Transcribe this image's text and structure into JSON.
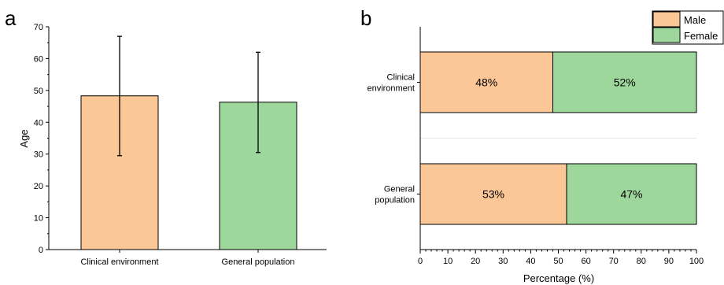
{
  "colors": {
    "male": "#FBC797",
    "female": "#9DD79B",
    "axis": "#000000"
  },
  "chart_data": [
    {
      "panel_label": "a",
      "type": "bar",
      "categories": [
        "Clinical environment",
        "General population"
      ],
      "values": [
        48.3,
        46.3
      ],
      "error_low": [
        29.5,
        30.5
      ],
      "error_high": [
        67,
        62
      ],
      "ylabel": "Age",
      "xlabel": "",
      "ylim": [
        0,
        70
      ],
      "yticks": [
        "0",
        "10",
        "20",
        "30",
        "40",
        "50",
        "60",
        "70"
      ],
      "grid": false
    },
    {
      "panel_label": "b",
      "type": "bar",
      "orientation": "horizontal-stacked",
      "categories": [
        {
          "line1": "Clinical",
          "line2": "environment"
        },
        {
          "line1": "General",
          "line2": "population"
        }
      ],
      "series": [
        {
          "name": "Male",
          "values": [
            48,
            53
          ],
          "labels": [
            "48%",
            "53%"
          ]
        },
        {
          "name": "Female",
          "values": [
            52,
            47
          ],
          "labels": [
            "52%",
            "47%"
          ]
        }
      ],
      "xlabel": "Percentage (%)",
      "xlim": [
        0,
        100
      ],
      "xticks": [
        "0",
        "10",
        "20",
        "30",
        "40",
        "50",
        "60",
        "70",
        "80",
        "90",
        "100"
      ],
      "legend_position": "top-right",
      "grid": false
    }
  ]
}
